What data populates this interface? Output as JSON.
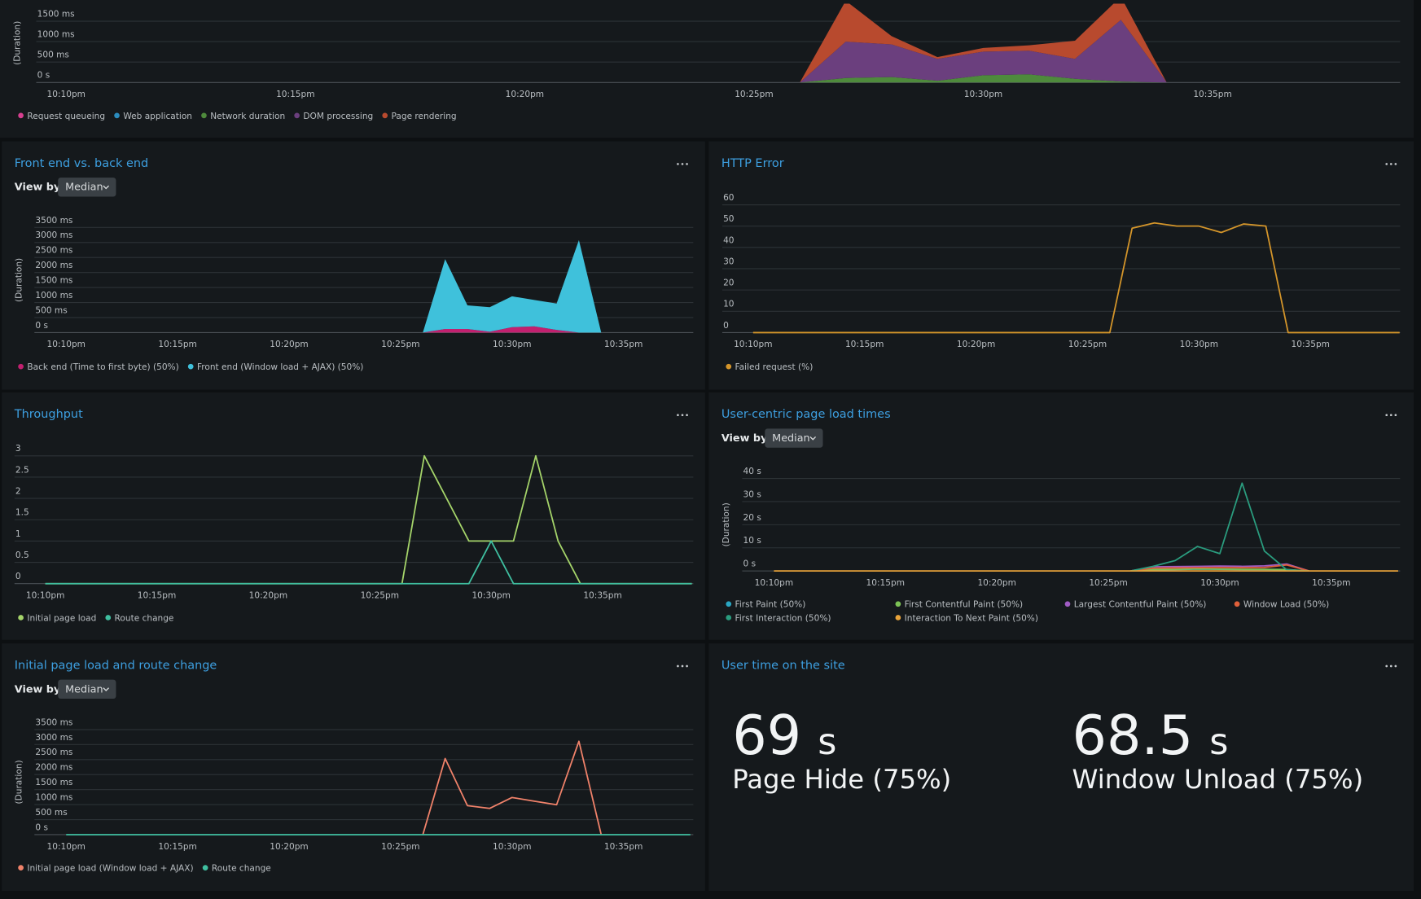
{
  "panels": [
    {
      "chart": {
        "type": "area",
        "y_label": "(Duration)",
        "x": [
          "10:10pm",
          null,
          null,
          null,
          null,
          "10:15pm",
          null,
          null,
          null,
          null,
          "10:20pm",
          null,
          null,
          null,
          null,
          "10:25pm",
          null,
          null,
          null,
          null,
          "10:30pm",
          null,
          null,
          null,
          null,
          "10:35pm",
          null,
          null,
          null,
          null
        ],
        "ylim": [
          0,
          1930
        ],
        "yticks": [
          {
            "value": 0,
            "label": "0 s"
          },
          {
            "value": 500,
            "label": "500 ms"
          },
          {
            "value": 1000,
            "label": "1000 ms"
          },
          {
            "value": 1500,
            "label": "1500 ms"
          }
        ],
        "series": [
          {
            "name": "Request queueing",
            "color": "#d63f8f",
            "values": [
              null,
              null,
              null,
              null,
              null,
              null,
              null,
              null,
              null,
              null,
              null,
              null,
              null,
              null,
              null,
              null,
              0,
              0,
              0,
              0,
              0,
              0,
              0,
              0,
              0,
              null,
              null,
              null,
              null,
              null
            ]
          },
          {
            "name": "Web application",
            "color": "#2b8cbe",
            "values": [
              null,
              null,
              null,
              null,
              null,
              null,
              null,
              null,
              null,
              null,
              null,
              null,
              null,
              null,
              null,
              null,
              0,
              0,
              0,
              0,
              0,
              0,
              0,
              0,
              0,
              null,
              null,
              null,
              null,
              null
            ]
          },
          {
            "name": "Network duration",
            "color": "#4e8a3c",
            "values": [
              null,
              null,
              null,
              null,
              null,
              null,
              null,
              null,
              null,
              null,
              null,
              null,
              null,
              null,
              null,
              null,
              0,
              110,
              133,
              44,
              178,
              200,
              89,
              22,
              0,
              null,
              null,
              null,
              null,
              null
            ]
          },
          {
            "name": "DOM processing",
            "color": "#6b3f7e",
            "values": [
              null,
              null,
              null,
              null,
              null,
              null,
              null,
              null,
              null,
              null,
              null,
              null,
              null,
              null,
              null,
              null,
              0,
              890,
              800,
              534,
              578,
              578,
              489,
              1511,
              0,
              null,
              null,
              null,
              null,
              null
            ]
          },
          {
            "name": "Page rendering",
            "color": "#b84a2e",
            "values": [
              null,
              null,
              null,
              null,
              null,
              null,
              null,
              null,
              null,
              null,
              null,
              null,
              null,
              null,
              null,
              null,
              0,
              1000,
              200,
              44,
              88,
              133,
              444,
              567,
              0,
              null,
              null,
              null,
              null,
              null
            ]
          }
        ]
      }
    },
    {
      "title": "Front end vs. back end",
      "view_by_label": "View by",
      "view_by": "Median",
      "chart": {
        "type": "area",
        "y_label": "(Duration)",
        "x": [
          "10:10pm",
          null,
          null,
          null,
          null,
          "10:15pm",
          null,
          null,
          null,
          null,
          "10:20pm",
          null,
          null,
          null,
          null,
          "10:25pm",
          null,
          null,
          null,
          null,
          "10:30pm",
          null,
          null,
          null,
          null,
          "10:35pm",
          null,
          null,
          null
        ],
        "ylim": [
          0,
          3500
        ],
        "yticks": [
          {
            "value": 0,
            "label": "0 s"
          },
          {
            "value": 500,
            "label": "500 ms"
          },
          {
            "value": 1000,
            "label": "1000 ms"
          },
          {
            "value": 1500,
            "label": "1500 ms"
          },
          {
            "value": 2000,
            "label": "2000 ms"
          },
          {
            "value": 2500,
            "label": "2500 ms"
          },
          {
            "value": 3000,
            "label": "3000 ms"
          },
          {
            "value": 3500,
            "label": "3500 ms"
          }
        ],
        "series": [
          {
            "name": "Back end (Time to first byte) (50%)",
            "color": "#c2206f",
            "values": [
              null,
              null,
              null,
              null,
              null,
              null,
              null,
              null,
              null,
              null,
              null,
              null,
              null,
              null,
              null,
              null,
              0,
              120,
              120,
              30,
              180,
              210,
              90,
              0,
              0,
              null,
              null,
              null,
              null
            ]
          },
          {
            "name": "Front end (Window load + AJAX) (50%)",
            "color": "#3fc1db",
            "values": [
              null,
              null,
              null,
              null,
              null,
              null,
              null,
              null,
              null,
              null,
              null,
              null,
              null,
              null,
              null,
              null,
              0,
              2324,
              785,
              815,
              1027,
              876,
              876,
              3078,
              0,
              null,
              null,
              null,
              null
            ]
          }
        ]
      }
    },
    {
      "title": "HTTP Error",
      "chart": {
        "type": "line",
        "x": [
          "10:10pm",
          null,
          null,
          null,
          null,
          "10:15pm",
          null,
          null,
          null,
          null,
          "10:20pm",
          null,
          null,
          null,
          null,
          "10:25pm",
          null,
          null,
          null,
          null,
          "10:30pm",
          null,
          null,
          null,
          null,
          "10:35pm",
          null,
          null,
          null,
          null
        ],
        "ylim": [
          0,
          60
        ],
        "yticks": [
          0,
          10,
          20,
          30,
          40,
          50,
          60
        ],
        "series": [
          {
            "name": "Failed request (%)",
            "color": "#d4952a",
            "values": [
              0,
              0,
              0,
              0,
              0,
              0,
              0,
              0,
              0,
              0,
              0,
              0,
              0,
              0,
              0,
              0,
              0,
              49,
              51.5,
              50,
              50,
              47,
              51,
              50,
              0,
              0,
              0,
              0,
              0,
              0
            ]
          }
        ]
      }
    },
    {
      "title": "Throughput",
      "chart": {
        "type": "line",
        "x": [
          "10:10pm",
          null,
          null,
          null,
          null,
          "10:15pm",
          null,
          null,
          null,
          null,
          "10:20pm",
          null,
          null,
          null,
          null,
          "10:25pm",
          null,
          null,
          null,
          null,
          "10:30pm",
          null,
          null,
          null,
          null,
          "10:35pm",
          null,
          null,
          null,
          null
        ],
        "ylim": [
          0,
          3
        ],
        "yticks": [
          0,
          0.5,
          1,
          1.5,
          2,
          2.5,
          3
        ],
        "series": [
          {
            "name": "Initial page load",
            "color": "#a5d46a",
            "values": [
              0,
              0,
              0,
              0,
              0,
              0,
              0,
              0,
              0,
              0,
              0,
              0,
              0,
              0,
              0,
              0,
              0,
              3,
              2,
              1,
              1,
              1,
              3,
              1,
              0,
              0,
              0,
              0,
              0,
              0
            ]
          },
          {
            "name": "Route change",
            "color": "#3fbfa0",
            "values": [
              0,
              0,
              0,
              0,
              0,
              0,
              0,
              0,
              0,
              0,
              0,
              0,
              0,
              0,
              0,
              0,
              0,
              0,
              0,
              0,
              1,
              0,
              0,
              0,
              0,
              0,
              0,
              0,
              0,
              0
            ]
          }
        ]
      }
    },
    {
      "title": "User-centric page load times",
      "view_by_label": "View by",
      "view_by": "Median",
      "chart": {
        "type": "line",
        "y_label": "(Duration)",
        "x": [
          "10:10pm",
          null,
          null,
          null,
          null,
          "10:15pm",
          null,
          null,
          null,
          null,
          "10:20pm",
          null,
          null,
          null,
          null,
          "10:25pm",
          null,
          null,
          null,
          null,
          "10:30pm",
          null,
          null,
          null,
          null,
          "10:35pm",
          null,
          null,
          null
        ],
        "ylim": [
          0,
          40
        ],
        "yticks": [
          {
            "value": 0,
            "label": "0 s"
          },
          {
            "value": 10,
            "label": "10 s"
          },
          {
            "value": 20,
            "label": "20 s"
          },
          {
            "value": 30,
            "label": "30 s"
          },
          {
            "value": 40,
            "label": "40 s"
          }
        ],
        "series": [
          {
            "name": "First Paint (50%)",
            "color": "#2aa6c2",
            "values": [
              null,
              null,
              null,
              null,
              null,
              null,
              null,
              null,
              null,
              null,
              null,
              null,
              null,
              null,
              null,
              null,
              0,
              0.5,
              0.6,
              0.8,
              0.7,
              0.6,
              0.6,
              0.5,
              0,
              null,
              null,
              null,
              null
            ]
          },
          {
            "name": "First Contentful Paint (50%)",
            "color": "#7cc255",
            "values": [
              null,
              null,
              null,
              null,
              null,
              null,
              null,
              null,
              null,
              null,
              null,
              null,
              null,
              null,
              null,
              null,
              0,
              0.6,
              0.7,
              0.9,
              0.8,
              0.7,
              0.7,
              0.6,
              0,
              null,
              null,
              null,
              null
            ]
          },
          {
            "name": "Largest Contentful Paint (50%)",
            "color": "#a05cc4",
            "values": [
              null,
              null,
              null,
              null,
              null,
              null,
              null,
              null,
              null,
              null,
              null,
              null,
              null,
              null,
              null,
              null,
              0,
              1.8,
              1.9,
              2,
              2.1,
              2,
              2.2,
              3,
              0,
              null,
              null,
              null,
              null
            ]
          },
          {
            "name": "Window Load (50%)",
            "color": "#e0603a",
            "values": [
              null,
              null,
              null,
              null,
              null,
              null,
              null,
              null,
              null,
              null,
              null,
              null,
              null,
              null,
              null,
              null,
              0,
              1.2,
              1.3,
              1.4,
              1.5,
              1.4,
              1.5,
              2.6,
              0,
              null,
              null,
              null,
              null
            ]
          },
          {
            "name": "First Interaction (50%)",
            "color": "#2a9c7e",
            "values": [
              null,
              null,
              null,
              null,
              null,
              null,
              null,
              null,
              null,
              null,
              null,
              null,
              null,
              null,
              null,
              null,
              0,
              2,
              4.5,
              10.6,
              7.5,
              38,
              8.6,
              0.5,
              0,
              null,
              null,
              null,
              null
            ]
          },
          {
            "name": "Interaction To Next Paint (50%)",
            "color": "#e8a33a",
            "values": [
              0,
              0,
              0,
              0,
              0,
              0,
              0,
              0,
              0,
              0,
              0,
              0,
              0,
              0,
              0,
              0,
              0,
              0,
              0,
              0,
              0,
              0,
              0,
              0,
              0,
              0,
              0,
              0,
              0
            ]
          }
        ]
      }
    },
    {
      "title": "Initial page load and route change",
      "view_by_label": "View by",
      "view_by": "Median",
      "chart": {
        "type": "line",
        "y_label": "(Duration)",
        "x": [
          "10:10pm",
          null,
          null,
          null,
          null,
          "10:15pm",
          null,
          null,
          null,
          null,
          "10:20pm",
          null,
          null,
          null,
          null,
          "10:25pm",
          null,
          null,
          null,
          null,
          "10:30pm",
          null,
          null,
          null,
          null,
          "10:35pm",
          null,
          null,
          null
        ],
        "ylim": [
          0,
          3500
        ],
        "yticks": [
          {
            "value": 0,
            "label": "0 s"
          },
          {
            "value": 500,
            "label": "500 ms"
          },
          {
            "value": 1000,
            "label": "1000 ms"
          },
          {
            "value": 1500,
            "label": "1500 ms"
          },
          {
            "value": 2000,
            "label": "2000 ms"
          },
          {
            "value": 2500,
            "label": "2500 ms"
          },
          {
            "value": 3000,
            "label": "3000 ms"
          },
          {
            "value": 3500,
            "label": "3500 ms"
          }
        ],
        "series": [
          {
            "name": "Initial page load (Window load + AJAX)",
            "color": "#f0826a",
            "values": [
              null,
              null,
              null,
              null,
              null,
              null,
              null,
              null,
              null,
              null,
              null,
              null,
              null,
              null,
              null,
              null,
              0,
              2534,
              966,
              875,
              1237,
              1116,
              996,
              3108,
              0,
              null,
              null,
              null,
              null
            ]
          },
          {
            "name": "Route change",
            "color": "#3fbfa0",
            "values": [
              0,
              0,
              0,
              0,
              0,
              0,
              0,
              0,
              0,
              0,
              0,
              0,
              0,
              0,
              0,
              0,
              0,
              0,
              0,
              0,
              0,
              0,
              0,
              0,
              0,
              0,
              0,
              0,
              0
            ]
          }
        ]
      }
    },
    {
      "title": "User time on the site",
      "stats": [
        {
          "value": 69,
          "unit": "s",
          "label": "Page Hide (75%)"
        },
        {
          "value": 68.5,
          "unit": "s",
          "label": "Window Unload (75%)"
        }
      ]
    }
  ]
}
